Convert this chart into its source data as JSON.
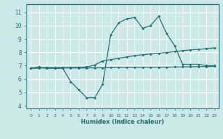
{
  "xlabel": "Humidex (Indice chaleur)",
  "bg_color": "#cce8e8",
  "grid_color": "#ffffff",
  "line_color": "#1a6b6b",
  "xlim": [
    -0.5,
    23.5
  ],
  "ylim": [
    3.8,
    11.6
  ],
  "yticks": [
    4,
    5,
    6,
    7,
    8,
    9,
    10,
    11
  ],
  "xticks": [
    0,
    1,
    2,
    3,
    4,
    5,
    6,
    7,
    8,
    9,
    10,
    11,
    12,
    13,
    14,
    15,
    16,
    17,
    18,
    19,
    20,
    21,
    22,
    23
  ],
  "line1_x": [
    0,
    1,
    2,
    3,
    4,
    5,
    6,
    7,
    8,
    9,
    10,
    11,
    12,
    13,
    14,
    15,
    16,
    17,
    18,
    19,
    20,
    21,
    22,
    23
  ],
  "line1_y": [
    6.8,
    6.9,
    6.8,
    6.8,
    6.8,
    5.8,
    5.2,
    4.6,
    4.6,
    5.6,
    9.3,
    10.2,
    10.5,
    10.6,
    9.8,
    10.0,
    10.7,
    9.4,
    8.5,
    7.1,
    7.1,
    7.1,
    7.0,
    7.0
  ],
  "line2_x": [
    0,
    1,
    2,
    3,
    4,
    5,
    6,
    7,
    8,
    9,
    10,
    11,
    12,
    13,
    14,
    15,
    16,
    17,
    18,
    19,
    20,
    21,
    22,
    23
  ],
  "line2_y": [
    6.8,
    6.85,
    6.85,
    6.85,
    6.86,
    6.87,
    6.88,
    6.9,
    7.05,
    7.35,
    7.45,
    7.55,
    7.65,
    7.75,
    7.82,
    7.88,
    7.93,
    7.98,
    8.05,
    8.12,
    8.18,
    8.22,
    8.28,
    8.32
  ],
  "line3_x": [
    0,
    1,
    2,
    3,
    4,
    5,
    6,
    7,
    8,
    9,
    10,
    11,
    12,
    13,
    14,
    15,
    16,
    17,
    18,
    19,
    20,
    21,
    22,
    23
  ],
  "line3_y": [
    6.8,
    6.82,
    6.83,
    6.83,
    6.83,
    6.83,
    6.83,
    6.83,
    6.84,
    6.84,
    6.85,
    6.86,
    6.86,
    6.87,
    6.87,
    6.88,
    6.88,
    6.89,
    6.9,
    6.91,
    6.92,
    6.93,
    6.94,
    6.95
  ]
}
